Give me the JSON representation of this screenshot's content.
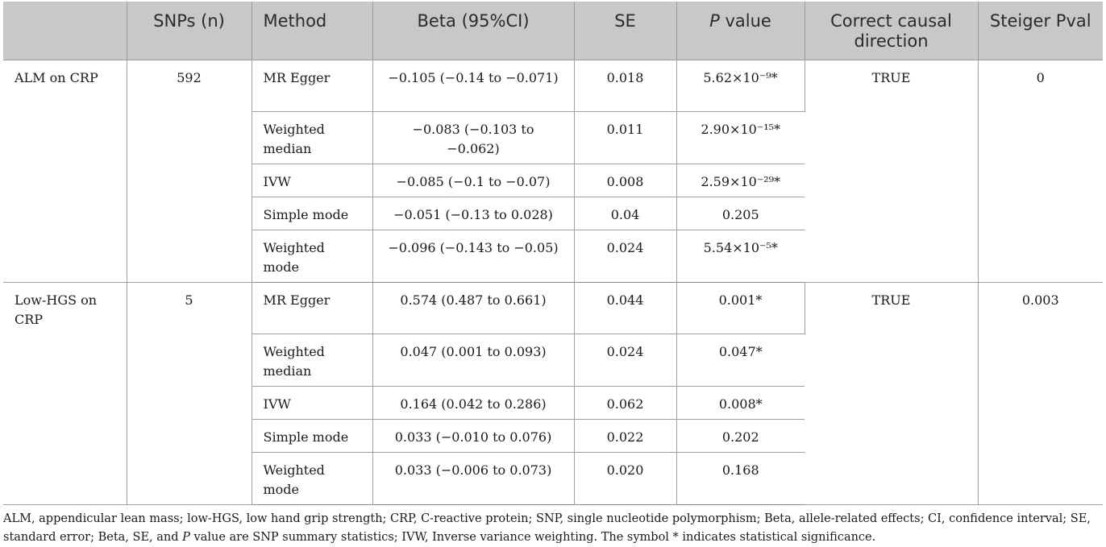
{
  "table": {
    "headers": {
      "exposure": "",
      "snps": "SNPs (n)",
      "method": "Method",
      "beta": "Beta (95%CI)",
      "se": "SE",
      "pvalue_italic": "P",
      "pvalue_rest": " value",
      "direction": "Correct causal direction",
      "steiger": "Steiger Pval"
    },
    "groups": [
      {
        "exposure": "ALM on CRP",
        "snps": "592",
        "direction": "TRUE",
        "steiger": "0",
        "rows": [
          {
            "method": "MR Egger",
            "beta": "−0.105 (−0.14 to −0.071)",
            "se": "0.018",
            "p": "5.62×10⁻⁹*"
          },
          {
            "method": "Weighted median",
            "beta": "−0.083 (−0.103 to −0.062)",
            "se": "0.011",
            "p": "2.90×10⁻¹⁵*"
          },
          {
            "method": "IVW",
            "beta": "−0.085 (−0.1 to −0.07)",
            "se": "0.008",
            "p": "2.59×10⁻²⁹*"
          },
          {
            "method": "Simple mode",
            "beta": "−0.051 (−0.13 to 0.028)",
            "se": "0.04",
            "p": "0.205"
          },
          {
            "method": "Weighted mode",
            "beta": "−0.096 (−0.143 to −0.05)",
            "se": "0.024",
            "p": "5.54×10⁻⁵*"
          }
        ]
      },
      {
        "exposure": "Low-HGS on CRP",
        "snps": "5",
        "direction": "TRUE",
        "steiger": "0.003",
        "rows": [
          {
            "method": "MR Egger",
            "beta": "0.574 (0.487 to 0.661)",
            "se": "0.044",
            "p": "0.001*"
          },
          {
            "method": "Weighted median",
            "beta": "0.047 (0.001 to 0.093)",
            "se": "0.024",
            "p": "0.047*"
          },
          {
            "method": "IVW",
            "beta": "0.164 (0.042 to 0.286)",
            "se": "0.062",
            "p": "0.008*"
          },
          {
            "method": "Simple mode",
            "beta": "0.033 (−0.010 to 0.076)",
            "se": "0.022",
            "p": "0.202"
          },
          {
            "method": "Weighted mode",
            "beta": "0.033 (−0.006 to 0.073)",
            "se": "0.020",
            "p": "0.168"
          }
        ]
      }
    ]
  },
  "footnote": {
    "part1": "ALM, appendicular lean mass; low-HGS, low hand grip strength; CRP, C-reactive protein; SNP, single nucleotide polymorphism; Beta, allele-related effects; CI, confidence interval; SE, standard error; Beta, SE, and ",
    "p_italic": "P",
    "part2": " value are SNP summary statistics; IVW, Inverse variance weighting. The symbol * indicates statistical significance."
  }
}
